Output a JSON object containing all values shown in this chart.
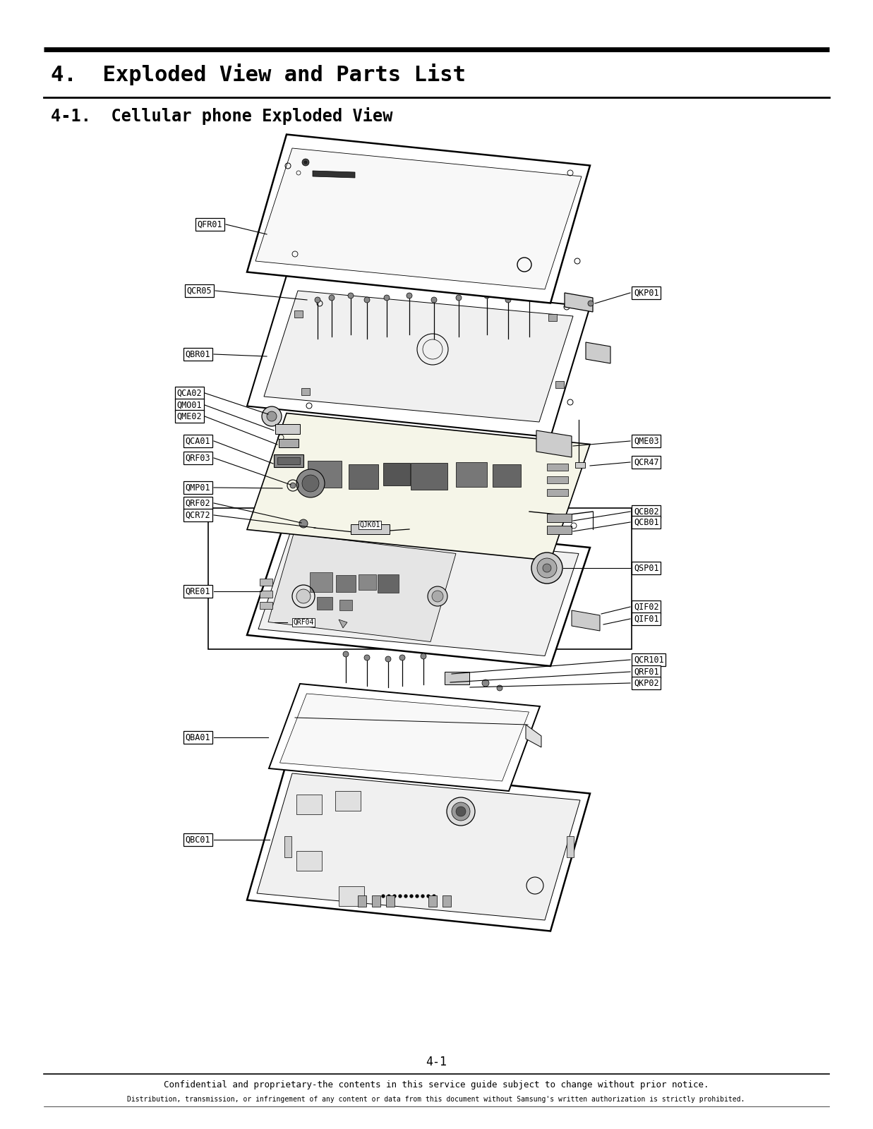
{
  "page_title": "4.  Exploded View and Parts List",
  "section_title": "4-1.  Cellular phone Exploded View",
  "page_number": "4-1",
  "footer_line1": "Confidential and proprietary-the contents in this service guide subject to change without prior notice.",
  "footer_line2": "Distribution, transmission, or infringement of any content or data from this document without Samsung's written authorization is strictly prohibited.",
  "bg_color": "#ffffff",
  "text_color": "#000000"
}
